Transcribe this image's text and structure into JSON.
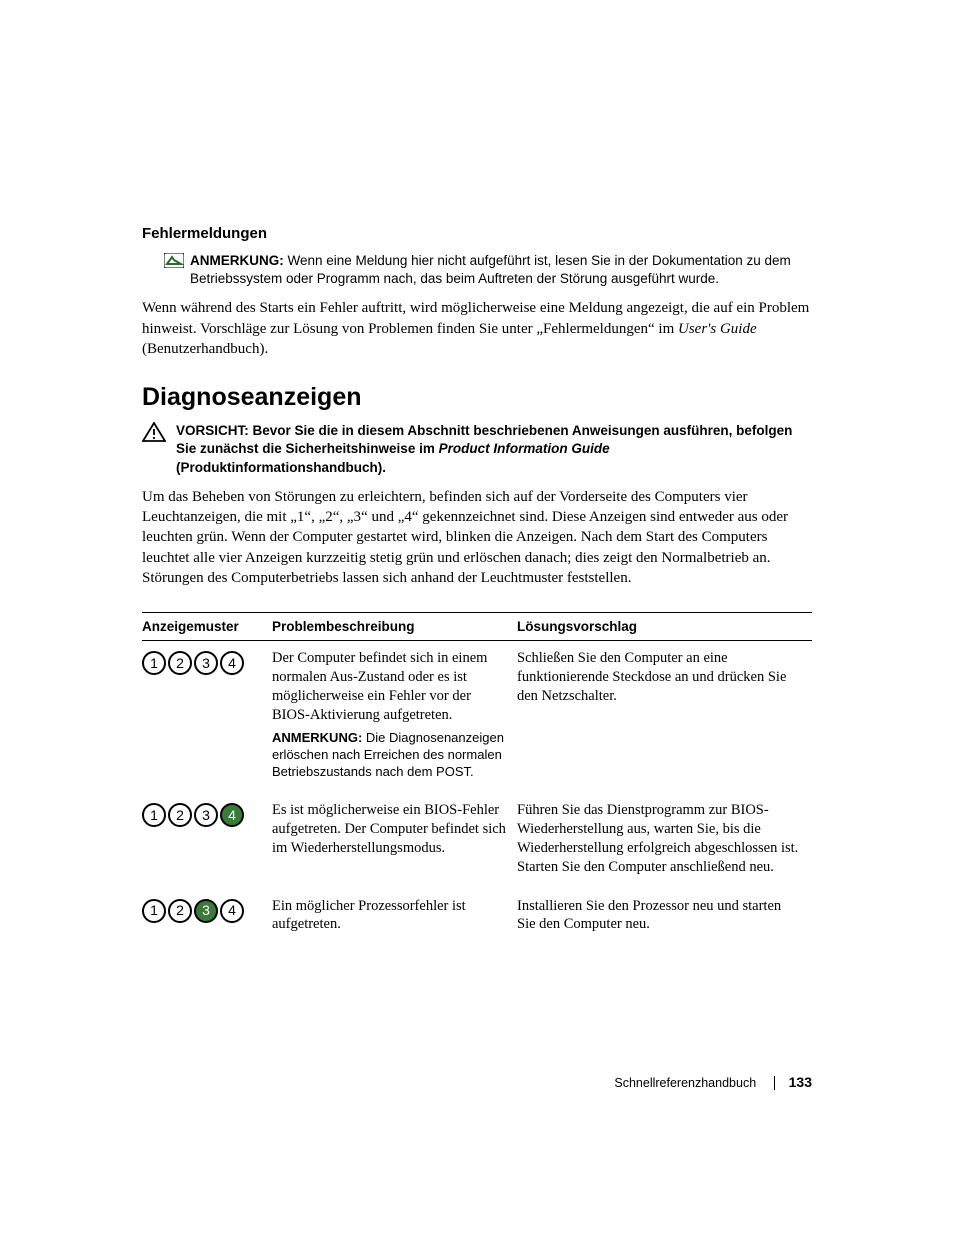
{
  "section1": {
    "subtitle": "Fehlermeldungen",
    "note_label": "ANMERKUNG:",
    "note_body": " Wenn eine Meldung hier nicht aufgeführt ist, lesen Sie in der Dokumentation zu dem Betriebssystem oder Programm nach, das beim Auftreten der Störung ausgeführt wurde.",
    "para_a": "Wenn während des Starts ein Fehler auftritt, wird möglicherweise eine Meldung angezeigt, die auf ein Problem hinweist. Vorschläge zur Lösung von Problemen finden Sie unter „Fehlermeldungen“ im ",
    "para_ital": "User's Guide",
    "para_b": " (Benutzerhandbuch)."
  },
  "section2": {
    "heading": "Diagnoseanzeigen",
    "caution_label": "VORSICHT: ",
    "caution_a": "Bevor Sie die in diesem Abschnitt beschriebenen Anweisungen ausführen, befolgen Sie zunächst die Sicherheitshinweise im ",
    "caution_ital": "Product Information Guide",
    "caution_b": " (Produktinformationshandbuch).",
    "body": "Um das Beheben von Störungen zu erleichtern, befinden sich auf der Vorderseite des Computers vier Leuchtanzeigen, die mit „1“, „2“, „3“ und „4“ gekennzeichnet sind. Diese Anzeigen sind entweder aus oder leuchten grün. Wenn der Computer gestartet wird, blinken die Anzeigen. Nach dem Start des Computers leuchtet alle vier Anzeigen kurzzeitig stetig grün und erlöschen danach; dies zeigt den Normalbetrieb an. Störungen des Computerbetriebs lassen sich anhand der Leuchtmuster feststellen."
  },
  "table": {
    "headers": {
      "c1": "Anzeigemuster",
      "c2": "Problembeschreibung",
      "c3": "Lösungsvorschlag"
    },
    "rows": [
      {
        "pattern": [
          {
            "n": "1",
            "filled": false
          },
          {
            "n": "2",
            "filled": false
          },
          {
            "n": "3",
            "filled": false
          },
          {
            "n": "4",
            "filled": false
          }
        ],
        "desc": "Der Computer befindet sich in einem normalen Aus-Zustand oder es ist möglicherweise ein Fehler vor der BIOS-Aktivierung aufgetreten.",
        "note_label": "ANMERKUNG:",
        "note_body": " Die Diagnosenanzeigen erlöschen nach Erreichen des normalen Betriebszustands nach dem POST.",
        "solution": "Schließen Sie den Computer an eine funktionierende Steckdose an und drücken Sie den Netzschalter."
      },
      {
        "pattern": [
          {
            "n": "1",
            "filled": false
          },
          {
            "n": "2",
            "filled": false
          },
          {
            "n": "3",
            "filled": false
          },
          {
            "n": "4",
            "filled": true
          }
        ],
        "desc": "Es ist möglicherweise ein BIOS-Fehler aufgetreten. Der Computer befindet sich im Wiederherstellungsmodus.",
        "solution": "Führen Sie das Dienstprogramm zur BIOS-Wiederherstellung aus, warten Sie, bis die Wiederherstellung erfolgreich abgeschlossen ist. Starten Sie den Computer anschließend neu."
      },
      {
        "pattern": [
          {
            "n": "1",
            "filled": false
          },
          {
            "n": "2",
            "filled": false
          },
          {
            "n": "3",
            "filled": true
          },
          {
            "n": "4",
            "filled": false
          }
        ],
        "desc": "Ein möglicher Prozessorfehler ist aufgetreten.",
        "solution": "Installieren Sie den Prozessor neu und starten Sie den Computer neu."
      }
    ]
  },
  "footer": {
    "label": "Schnellreferenzhandbuch",
    "page": "133"
  },
  "colors": {
    "text": "#000000",
    "led_on": "#3a7a3a",
    "background": "#ffffff"
  }
}
